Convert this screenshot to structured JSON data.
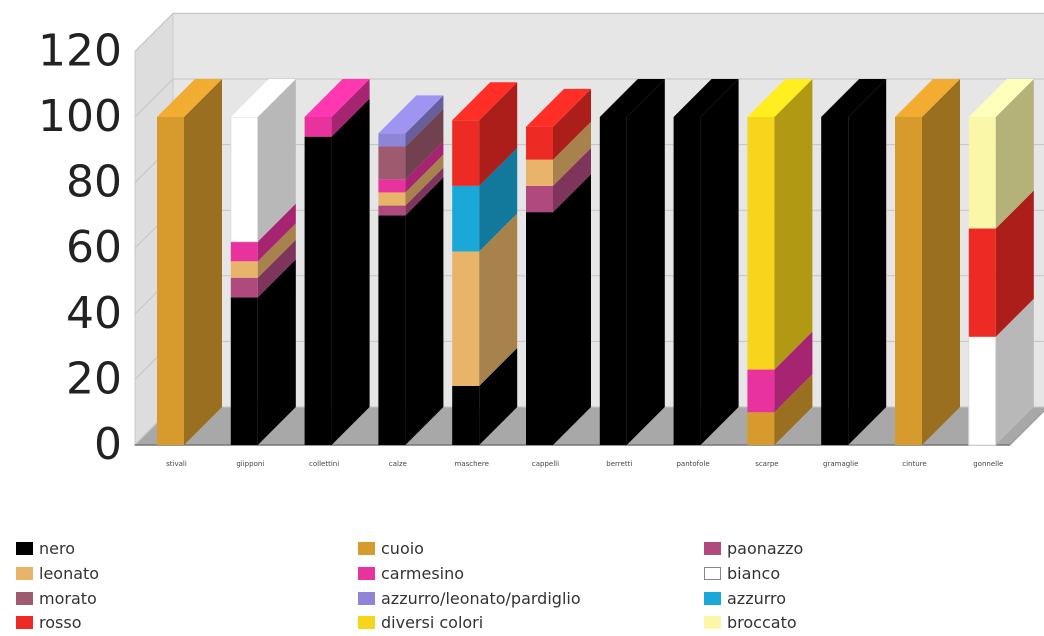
{
  "chart_data": {
    "type": "bar",
    "stacked": true,
    "three_d": true,
    "title": "",
    "xlabel": "",
    "ylabel": "",
    "ylim": [
      0,
      120
    ],
    "yticks": [
      0,
      20,
      40,
      60,
      80,
      100,
      120
    ],
    "grid": true,
    "legend_position": "bottom",
    "categories": [
      "stivali",
      "giipponi",
      "collettini",
      "calze",
      "maschere",
      "cappelli",
      "berretti",
      "pantofole",
      "scarpe",
      "gramaglie",
      "cinture",
      "gonnelle"
    ],
    "series": [
      {
        "name": "nero",
        "color": "#000000",
        "values": [
          0,
          45,
          94,
          70,
          18,
          71,
          100,
          100,
          0,
          100,
          0,
          0
        ]
      },
      {
        "name": "cuoio",
        "color": "#d79a2c",
        "values": [
          100,
          0,
          0,
          0,
          0,
          0,
          0,
          0,
          10,
          0,
          100,
          0
        ]
      },
      {
        "name": "paonazzo",
        "color": "#b04a7e",
        "values": [
          0,
          6,
          0,
          3,
          0,
          8,
          0,
          0,
          0,
          0,
          0,
          0
        ]
      },
      {
        "name": "leonato",
        "color": "#e8b46a",
        "values": [
          0,
          5,
          0,
          4,
          41,
          8,
          0,
          0,
          0,
          0,
          0,
          0
        ]
      },
      {
        "name": "carmesino",
        "color": "#e8329e",
        "values": [
          0,
          6,
          6,
          4,
          0,
          0,
          0,
          0,
          13,
          0,
          0,
          0
        ]
      },
      {
        "name": "bianco",
        "color": "#ffffff",
        "values": [
          0,
          38,
          0,
          0,
          0,
          0,
          0,
          0,
          0,
          0,
          0,
          33
        ]
      },
      {
        "name": "morato",
        "color": "#9e5a6e",
        "values": [
          0,
          0,
          0,
          10,
          0,
          0,
          0,
          0,
          0,
          0,
          0,
          0
        ]
      },
      {
        "name": "azzurro/leonato/pardiglio",
        "color": "#8e84d8",
        "values": [
          0,
          0,
          0,
          4,
          0,
          0,
          0,
          0,
          0,
          0,
          0,
          0
        ]
      },
      {
        "name": "azzurro",
        "color": "#1aa8d8",
        "values": [
          0,
          0,
          0,
          0,
          20,
          0,
          0,
          0,
          0,
          0,
          0,
          0
        ]
      },
      {
        "name": "rosso",
        "color": "#ee2a24",
        "values": [
          0,
          0,
          0,
          0,
          20,
          10,
          0,
          0,
          0,
          0,
          0,
          33
        ]
      },
      {
        "name": "diversi colori",
        "color": "#f7d51c",
        "values": [
          0,
          0,
          0,
          0,
          0,
          0,
          0,
          0,
          77,
          0,
          0,
          0
        ]
      },
      {
        "name": "broccato",
        "color": "#fbf7a8",
        "values": [
          0,
          0,
          0,
          0,
          0,
          0,
          0,
          0,
          0,
          0,
          0,
          34
        ]
      }
    ]
  },
  "legend_layout_order": [
    [
      "nero",
      "leonato",
      "morato",
      "rosso"
    ],
    [
      "cuoio",
      "carmesino",
      "azzurro/leonato/pardiglio",
      "diversi colori"
    ],
    [
      "paonazzo",
      "bianco",
      "azzurro",
      "broccato"
    ]
  ]
}
